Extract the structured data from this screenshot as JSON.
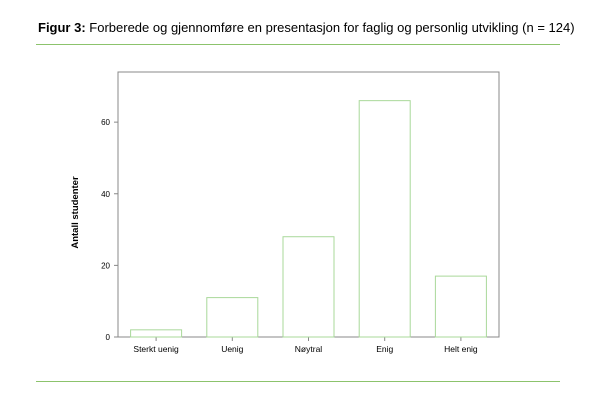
{
  "figure": {
    "caption_prefix": "Figur 3:",
    "caption_text": " Forberede og gjennomføre en presentasjon for faglig og personlig utvikling (n = 124)"
  },
  "chart_data": {
    "type": "bar",
    "categories": [
      "Sterkt uenig",
      "Uenig",
      "Nøytral",
      "Enig",
      "Helt enig"
    ],
    "values": [
      2,
      11,
      28,
      66,
      17
    ],
    "ylabel": "Antall studenter",
    "xlabel": "",
    "ylim": [
      0,
      74
    ],
    "yticks": [
      0,
      20,
      40,
      60
    ],
    "grid": false,
    "legend": "none",
    "bar_color": "#a9d89a",
    "axis_color": "#888888"
  }
}
